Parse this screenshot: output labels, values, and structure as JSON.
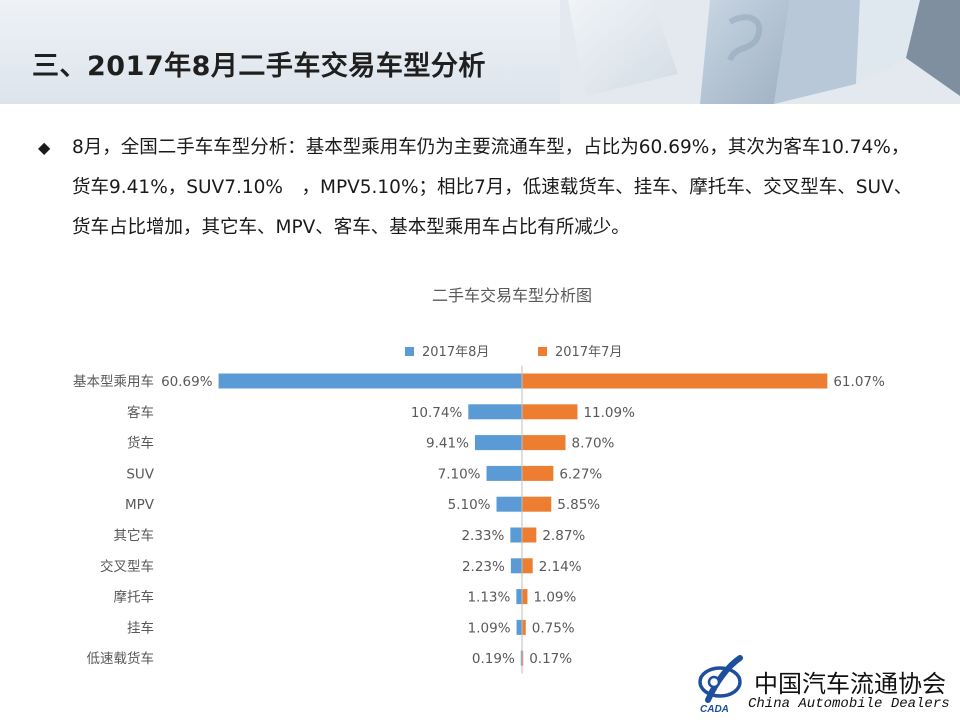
{
  "header": {
    "title": "三、2017年8月二手车交易车型分析"
  },
  "summary": {
    "bullet": "◆",
    "text": "8月，全国二手车车型分析：基本型乘用车仍为主要流通车型，占比为60.69%，其次为客车10.74%，货车9.41%，SUV7.10%　，MPV5.10%；相比7月，低速载货车、挂车、摩托车、交叉型车、SUV、货车占比增加，其它车、MPV、客车、基本型乘用车占比有所减少。"
  },
  "chart_data": {
    "type": "bar",
    "orientation": "horizontal-diverging",
    "title": "二手车交易车型分析图",
    "categories": [
      "基本型乘用车",
      "客车",
      "货车",
      "SUV",
      "MPV",
      "其它车",
      "交叉型车",
      "摩托车",
      "挂车",
      "低速载货车"
    ],
    "series": [
      {
        "name": "2017年8月",
        "color": "#5b9bd5",
        "values": [
          60.69,
          10.74,
          9.41,
          7.1,
          5.1,
          2.33,
          2.23,
          1.13,
          1.09,
          0.19
        ],
        "labels": [
          "60.69%",
          "10.74%",
          "9.41%",
          "7.10%",
          "5.10%",
          "2.33%",
          "2.23%",
          "1.13%",
          "1.09%",
          "0.19%"
        ]
      },
      {
        "name": "2017年7月",
        "color": "#ed7d31",
        "values": [
          61.07,
          11.09,
          8.7,
          6.27,
          5.85,
          2.87,
          2.14,
          1.09,
          0.75,
          0.17
        ],
        "labels": [
          "61.07%",
          "11.09%",
          "8.70%",
          "6.27%",
          "5.85%",
          "2.87%",
          "2.14%",
          "1.09%",
          "0.75%",
          "0.17%"
        ]
      }
    ],
    "unit": "%",
    "legend_position": "top",
    "grid": false
  },
  "logo": {
    "name_cn": "中国汽车流通协会",
    "name_en": "China Automobile Dealers",
    "mark_text": "CADA"
  }
}
